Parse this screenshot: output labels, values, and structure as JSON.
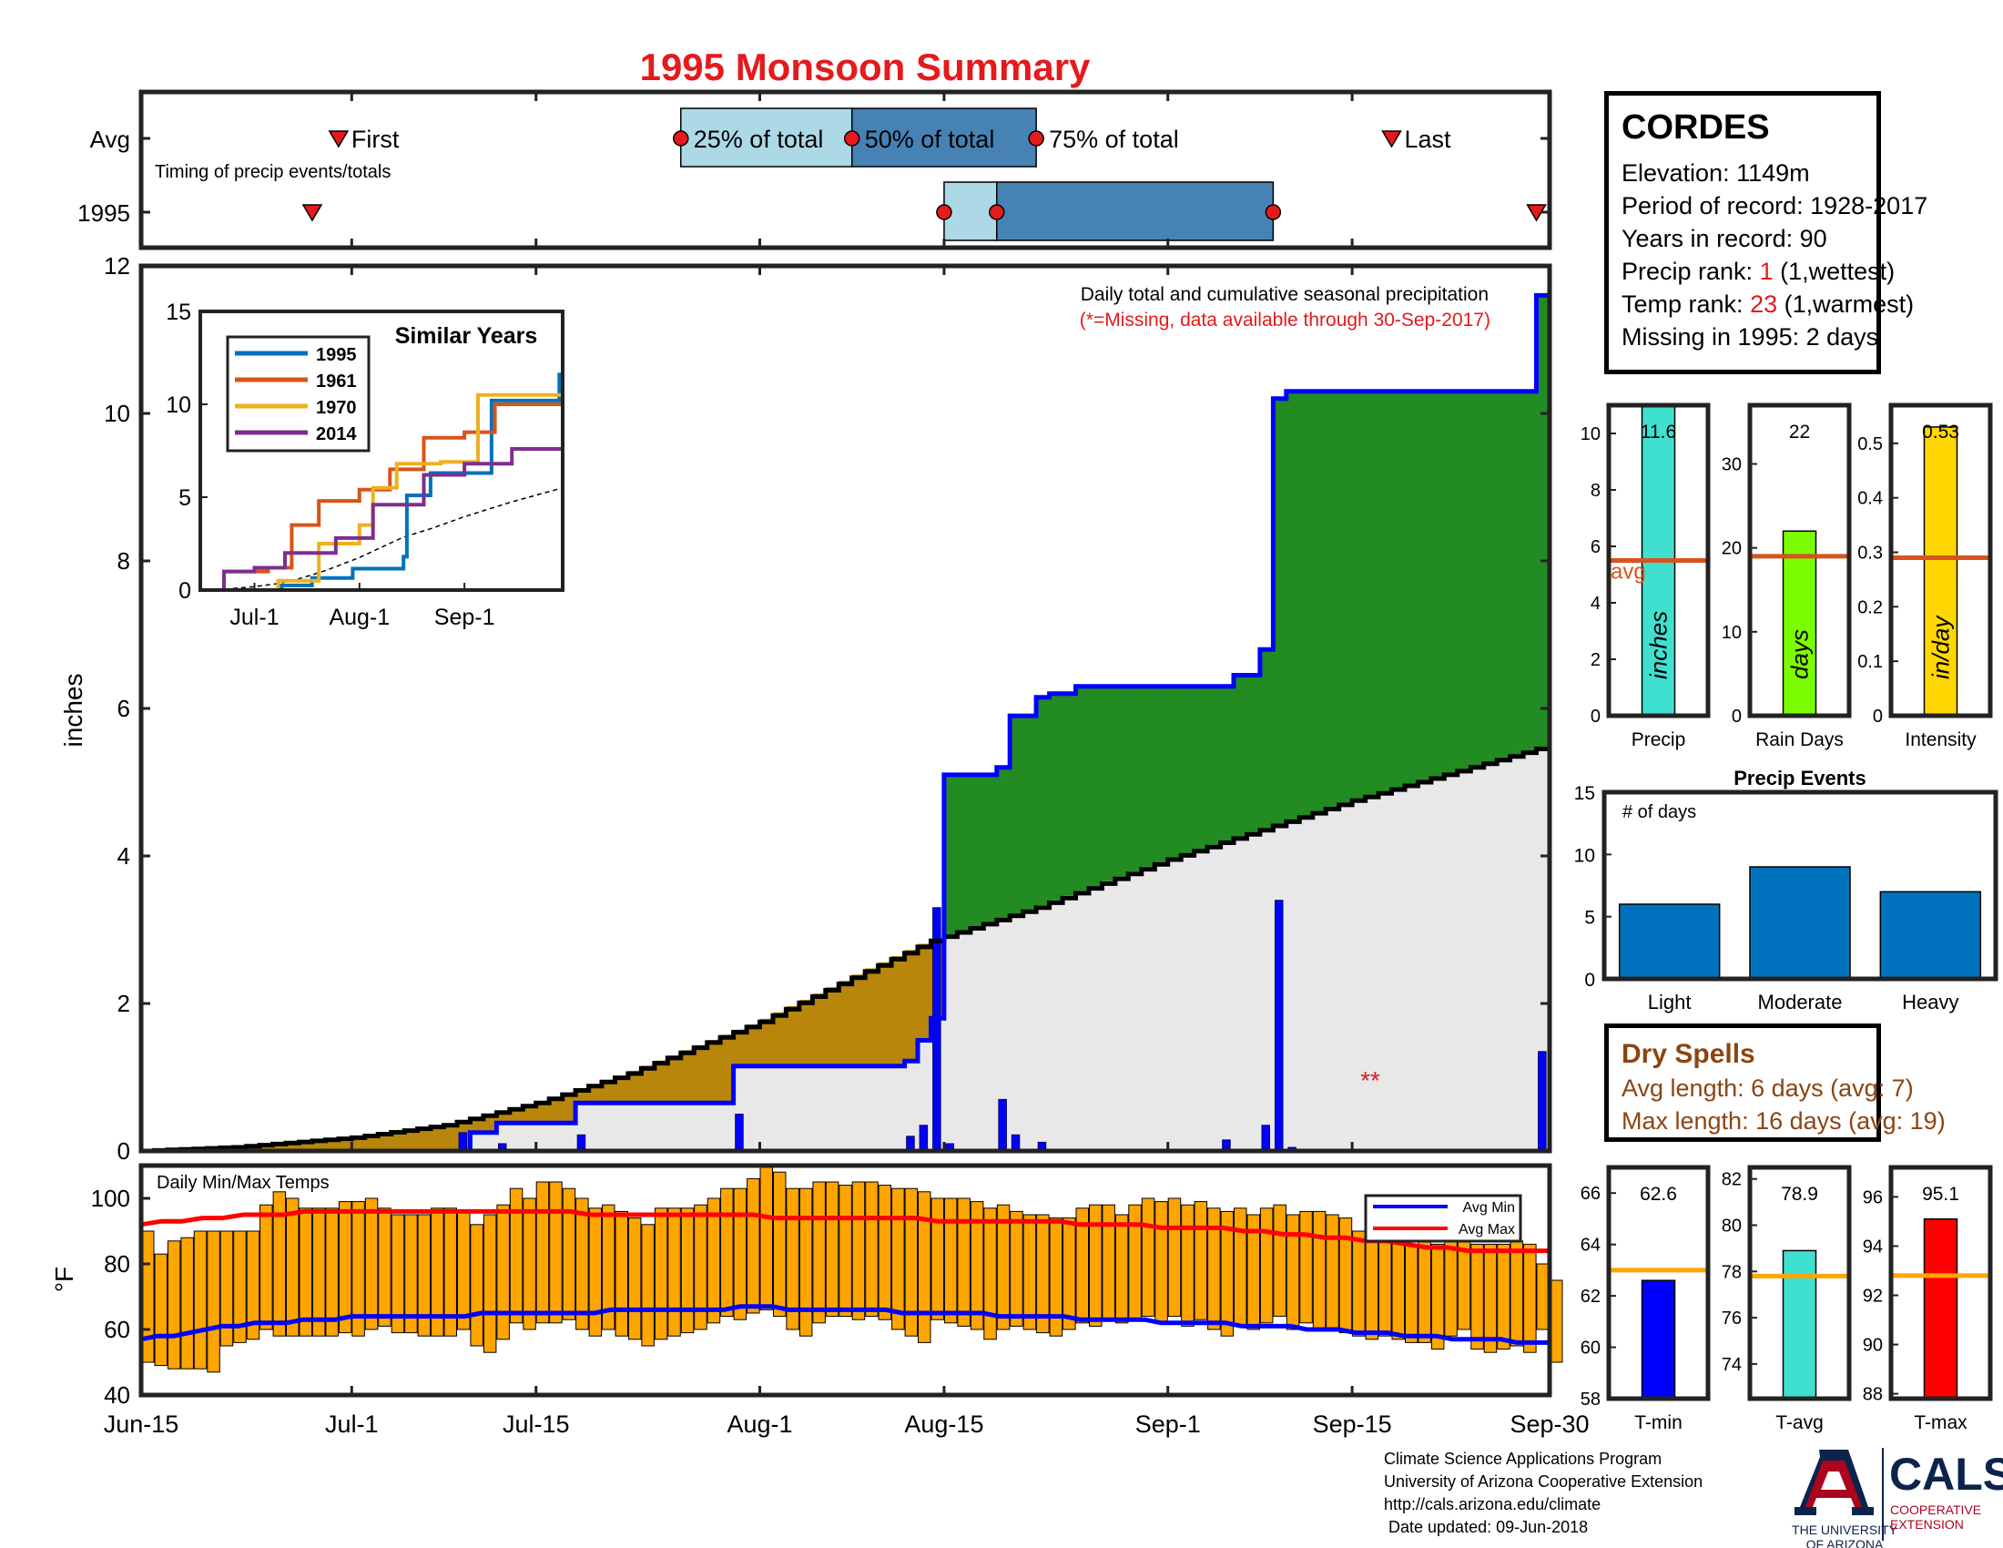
{
  "title": "1995 Monsoon Summary",
  "colors": {
    "title": "#e41a1c",
    "avg_line": "#d9531e",
    "precip_fill_above": "#228b22",
    "precip_fill_below": "#b8860b",
    "climo_fill": "#e8e8e8",
    "daily_bar": "#0000ff",
    "temp_bar": "#ffa500",
    "avg_min": "#0000ff",
    "avg_max": "#ff0000"
  },
  "timing": {
    "row_labels": [
      "Avg",
      "1995"
    ],
    "caption": "Timing of precip events/totals",
    "avg_markers": {
      "first": "First",
      "q25": "25% of total",
      "q50": "50% of total",
      "q75": "75% of total",
      "last": "Last"
    },
    "avg_dates": {
      "first": "2017-06-30",
      "q25": "2017-07-26",
      "q50": "2017-08-08",
      "q75": "2017-08-22",
      "last": "2017-09-18"
    },
    "y1995_dates": {
      "first": "2017-06-28",
      "q25": "2017-08-15",
      "q50": "2017-08-19",
      "q75": "2017-09-09",
      "last": "2017-09-29"
    }
  },
  "station": {
    "name": "CORDES",
    "lines": {
      "elevation": "Elevation: 1149m",
      "period": "Period of record: 1928-2017",
      "years": "Years in record: 90",
      "precip_rank_pre": "Precip rank: ",
      "precip_rank_val": "1",
      "precip_rank_post": " (1,wettest)",
      "temp_rank_pre": "Temp rank: ",
      "temp_rank_val": "23",
      "temp_rank_post": " (1,warmest)",
      "missing": "Missing in 1995: 2 days"
    }
  },
  "main_plot": {
    "annotation": "Daily total and cumulative seasonal precipitation",
    "annotation_sub": "(*=Missing, data available through 30-Sep-2017)",
    "missing_marker": "**",
    "ylabel": "inches",
    "yticks": [
      "0",
      "2",
      "4",
      "6",
      "8",
      "10",
      "12"
    ],
    "xticks": [
      "Jun-15",
      "Jul-1",
      "Jul-15",
      "Aug-1",
      "Aug-15",
      "Sep-1",
      "Sep-15",
      "Sep-30"
    ]
  },
  "inset": {
    "title": "Similar Years",
    "yticks": [
      "0",
      "5",
      "10",
      "15"
    ],
    "xticks": [
      "Jul-1",
      "Aug-1",
      "Sep-1"
    ]
  },
  "temp_plot": {
    "title": "Daily Min/Max Temps",
    "ylabel": "°F",
    "yticks": [
      "40",
      "60",
      "80",
      "100"
    ],
    "legend": [
      "Avg Min",
      "Avg Max"
    ]
  },
  "small_bars": {
    "precip": {
      "label": "Precip",
      "unit": "inches",
      "value_text": "11.6",
      "avg_text": "avg",
      "yticks": [
        "0",
        "2",
        "4",
        "6",
        "8",
        "10"
      ]
    },
    "raindays": {
      "label": "Rain Days",
      "unit": "days",
      "value_text": "22",
      "yticks": [
        "0",
        "10",
        "20",
        "30"
      ]
    },
    "intensity": {
      "label": "Intensity",
      "unit": "in/day",
      "value_text": "0.53",
      "yticks": [
        "0",
        "0.1",
        "0.2",
        "0.3",
        "0.4",
        "0.5"
      ]
    }
  },
  "events": {
    "title": "Precip Events",
    "ylabel": "# of days",
    "yticks": [
      "0",
      "5",
      "10",
      "15"
    ]
  },
  "dry_spells": {
    "title": "Dry Spells",
    "avg_length": "Avg length: 6 days (avg: 7)",
    "max_length": "Max length: 16 days (avg: 19)"
  },
  "temp_bars": {
    "tmin": {
      "label": "T-min",
      "value_text": "62.6",
      "yticks": [
        "58",
        "60",
        "62",
        "64",
        "66"
      ]
    },
    "tavg": {
      "label": "T-avg",
      "value_text": "78.9",
      "yticks": [
        "74",
        "76",
        "78",
        "80",
        "82"
      ]
    },
    "tmax": {
      "label": "T-max",
      "value_text": "95.1",
      "yticks": [
        "88",
        "90",
        "92",
        "94",
        "96"
      ]
    }
  },
  "footer": {
    "line1": "Climate Science Applications Program",
    "line2": "University of Arizona Cooperative Extension",
    "line3": "http://cals.arizona.edu/climate",
    "line4": " Date updated: 09-Jun-2018"
  },
  "logos": {
    "ua_name_1": "THE UNIVERSITY",
    "ua_name_2": "OF ARIZONA",
    "cals": "CALS",
    "cals_sub_1": "COOPERATIVE",
    "cals_sub_2": "EXTENSION"
  },
  "chart_data": [
    {
      "type": "line",
      "title": "1995 Monsoon Summary",
      "ylabel": "inches",
      "ylim": [
        0,
        12
      ],
      "xlim": [
        "Jun-15",
        "Sep-30"
      ],
      "series": [
        {
          "name": "1995 cumulative",
          "x": [
            "2017-06-15",
            "2017-07-09",
            "2017-07-10",
            "2017-07-12",
            "2017-07-18",
            "2017-07-30",
            "2017-08-12",
            "2017-08-13",
            "2017-08-14",
            "2017-08-15",
            "2017-08-19",
            "2017-08-20",
            "2017-08-22",
            "2017-08-23",
            "2017-08-25",
            "2017-09-06",
            "2017-09-08",
            "2017-09-09",
            "2017-09-10",
            "2017-09-29",
            "2017-09-30"
          ],
          "y": [
            0,
            0,
            0.25,
            0.38,
            0.65,
            1.15,
            1.22,
            1.5,
            1.8,
            5.1,
            5.2,
            5.9,
            6.15,
            6.2,
            6.3,
            6.45,
            6.8,
            10.2,
            10.3,
            11.6,
            11.6
          ]
        },
        {
          "name": "Average cumulative",
          "x": [
            "2017-06-15",
            "2017-06-22",
            "2017-07-01",
            "2017-07-08",
            "2017-07-15",
            "2017-07-22",
            "2017-08-01",
            "2017-08-08",
            "2017-08-14",
            "2017-08-22",
            "2017-09-01",
            "2017-09-08",
            "2017-09-15",
            "2017-09-22",
            "2017-09-30"
          ],
          "y": [
            0,
            0.05,
            0.18,
            0.35,
            0.65,
            1.05,
            1.75,
            2.35,
            2.85,
            3.3,
            3.95,
            4.35,
            4.75,
            5.1,
            5.5
          ]
        },
        {
          "name": "Daily precip",
          "x": [
            "2017-07-09",
            "2017-07-10",
            "2017-07-12",
            "2017-07-18",
            "2017-07-30",
            "2017-08-12",
            "2017-08-13",
            "2017-08-14",
            "2017-08-15",
            "2017-08-19",
            "2017-08-20",
            "2017-08-22",
            "2017-09-05",
            "2017-09-08",
            "2017-09-09",
            "2017-09-10",
            "2017-09-29"
          ],
          "y": [
            0.25,
            0.02,
            0.1,
            0.22,
            0.5,
            0.2,
            0.35,
            3.3,
            0.1,
            0.7,
            0.22,
            0.12,
            0.15,
            0.35,
            3.4,
            0.05,
            1.35
          ]
        }
      ]
    },
    {
      "type": "line",
      "title": "Similar Years",
      "ylim": [
        0,
        15
      ],
      "series": [
        {
          "name": "1995",
          "x": [
            "Jun-15",
            "Jul-9",
            "Jul-18",
            "Jul-30",
            "Aug-14",
            "Aug-15",
            "Aug-22",
            "Sep-9",
            "Sep-29"
          ],
          "y": [
            0,
            0.25,
            0.65,
            1.15,
            1.8,
            5.1,
            6.3,
            10.2,
            11.6
          ]
        },
        {
          "name": "1961",
          "x": [
            "Jun-15",
            "Jun-22",
            "Jul-5",
            "Jul-12",
            "Jul-20",
            "Aug-1",
            "Aug-10",
            "Aug-20",
            "Sep-1",
            "Sep-10",
            "Sep-30"
          ],
          "y": [
            0,
            1.0,
            1.2,
            3.5,
            4.8,
            5.4,
            6.5,
            8.2,
            8.5,
            10.0,
            10.0
          ]
        },
        {
          "name": "1970",
          "x": [
            "Jun-15",
            "Jul-1",
            "Jul-8",
            "Jul-20",
            "Aug-1",
            "Aug-5",
            "Aug-12",
            "Aug-25",
            "Sep-5",
            "Sep-30"
          ],
          "y": [
            0,
            0,
            0.5,
            2.5,
            3.5,
            5.5,
            6.8,
            6.9,
            10.5,
            10.5
          ]
        },
        {
          "name": "2014",
          "x": [
            "Jun-15",
            "Jun-22",
            "Jul-1",
            "Jul-10",
            "Jul-25",
            "Aug-5",
            "Aug-20",
            "Sep-1",
            "Sep-15",
            "Sep-30"
          ],
          "y": [
            0,
            1.0,
            1.2,
            2.0,
            2.8,
            4.6,
            6.2,
            6.8,
            7.6,
            8.1
          ]
        }
      ],
      "xticks": [
        "Jul-1",
        "Aug-1",
        "Sep-1"
      ]
    },
    {
      "type": "bar",
      "title": "Daily Min/Max Temps",
      "ylabel": "°F",
      "ylim": [
        40,
        110
      ],
      "series": [
        {
          "name": "1995 daily min",
          "values": [
            50,
            49,
            48,
            48,
            48,
            47,
            55,
            56,
            57,
            60,
            58,
            58,
            58,
            58,
            58,
            59,
            58,
            60,
            61,
            59,
            59,
            58,
            58,
            58,
            60,
            55,
            53,
            57,
            62,
            60,
            62,
            62,
            63,
            60,
            58,
            60,
            58,
            57,
            55,
            57,
            58,
            59,
            60,
            62,
            64,
            63,
            65,
            66,
            64,
            60,
            58,
            62,
            64,
            64,
            63,
            64,
            63,
            60,
            58,
            56,
            63,
            62,
            61,
            60,
            57,
            60,
            61,
            60,
            59,
            58,
            60,
            62,
            61,
            63,
            62,
            63,
            64,
            62,
            64,
            61,
            63,
            60,
            58,
            61,
            60,
            62,
            64,
            60,
            62,
            60,
            60,
            59,
            58,
            57,
            58,
            57,
            56,
            56,
            54,
            58,
            60,
            54,
            53,
            54,
            55,
            53,
            60,
            50
          ]
        },
        {
          "name": "1995 daily max",
          "values": [
            90,
            83,
            87,
            88,
            90,
            90,
            90,
            90,
            90,
            98,
            102,
            100,
            97,
            97,
            97,
            99,
            99,
            100,
            97,
            95,
            95,
            95,
            97,
            97,
            96,
            92,
            95,
            98,
            103,
            100,
            105,
            105,
            103,
            100,
            97,
            98,
            96,
            94,
            92,
            97,
            97,
            97,
            98,
            100,
            103,
            103,
            106,
            110,
            108,
            103,
            103,
            105,
            105,
            104,
            105,
            105,
            104,
            103,
            103,
            102,
            100,
            100,
            100,
            99,
            97,
            98,
            96,
            95,
            95,
            94,
            94,
            97,
            98,
            98,
            95,
            98,
            100,
            99,
            100,
            98,
            99,
            97,
            96,
            97,
            95,
            97,
            98,
            95,
            96,
            96,
            95,
            94,
            90,
            90,
            90,
            88,
            86,
            88,
            86,
            90,
            90,
            86,
            86,
            86,
            87,
            86,
            80,
            75
          ]
        },
        {
          "name": "Avg Min",
          "values": [
            57,
            58,
            58,
            59,
            60,
            61,
            61,
            62,
            62,
            62,
            63,
            63,
            63,
            64,
            64,
            64,
            64,
            64,
            64,
            64,
            64,
            65,
            65,
            65,
            65,
            65,
            65,
            65,
            65,
            66,
            66,
            66,
            66,
            66,
            66,
            66,
            66,
            67,
            67,
            67,
            66,
            66,
            66,
            66,
            66,
            66,
            66,
            65,
            65,
            65,
            65,
            65,
            65,
            64,
            64,
            64,
            64,
            64,
            63,
            63,
            63,
            63,
            63,
            62,
            62,
            62,
            62,
            62,
            61,
            61,
            61,
            61,
            60,
            60,
            60,
            59,
            59,
            59,
            58,
            58,
            58,
            57,
            57,
            57,
            57,
            56,
            56,
            56
          ]
        },
        {
          "name": "Avg Max",
          "values": [
            92,
            93,
            93,
            94,
            94,
            95,
            95,
            95,
            96,
            96,
            96,
            96,
            96,
            96,
            96,
            96,
            96,
            96,
            96,
            96,
            96,
            96,
            95,
            95,
            95,
            95,
            95,
            95,
            95,
            95,
            95,
            94,
            94,
            94,
            94,
            94,
            94,
            94,
            94,
            93,
            93,
            93,
            93,
            93,
            93,
            93,
            92,
            92,
            92,
            92,
            91,
            91,
            91,
            91,
            90,
            90,
            89,
            89,
            88,
            88,
            87,
            87,
            86,
            85,
            85,
            84,
            84,
            84,
            84,
            84
          ]
        }
      ]
    },
    {
      "type": "bar",
      "title": "Precip Events",
      "ylabel": "# of days",
      "categories": [
        "Light",
        "Moderate",
        "Heavy"
      ],
      "values": [
        6,
        9,
        7
      ],
      "ylim": [
        0,
        15
      ]
    },
    {
      "type": "bar",
      "series": [
        {
          "name": "Precip",
          "value": 11.6,
          "avg": 5.5,
          "ylim": [
            0,
            11
          ]
        },
        {
          "name": "Rain Days",
          "value": 22,
          "avg": 19,
          "ylim": [
            0,
            37
          ]
        },
        {
          "name": "Intensity",
          "value": 0.53,
          "avg": 0.29,
          "ylim": [
            0,
            0.57
          ]
        },
        {
          "name": "T-min",
          "value": 62.6,
          "avg": 63.0,
          "ylim": [
            58,
            67
          ]
        },
        {
          "name": "T-avg",
          "value": 78.9,
          "avg": 77.8,
          "ylim": [
            72.5,
            82.5
          ]
        },
        {
          "name": "T-max",
          "value": 95.1,
          "avg": 92.8,
          "ylim": [
            87.8,
            97.2
          ]
        }
      ]
    }
  ]
}
